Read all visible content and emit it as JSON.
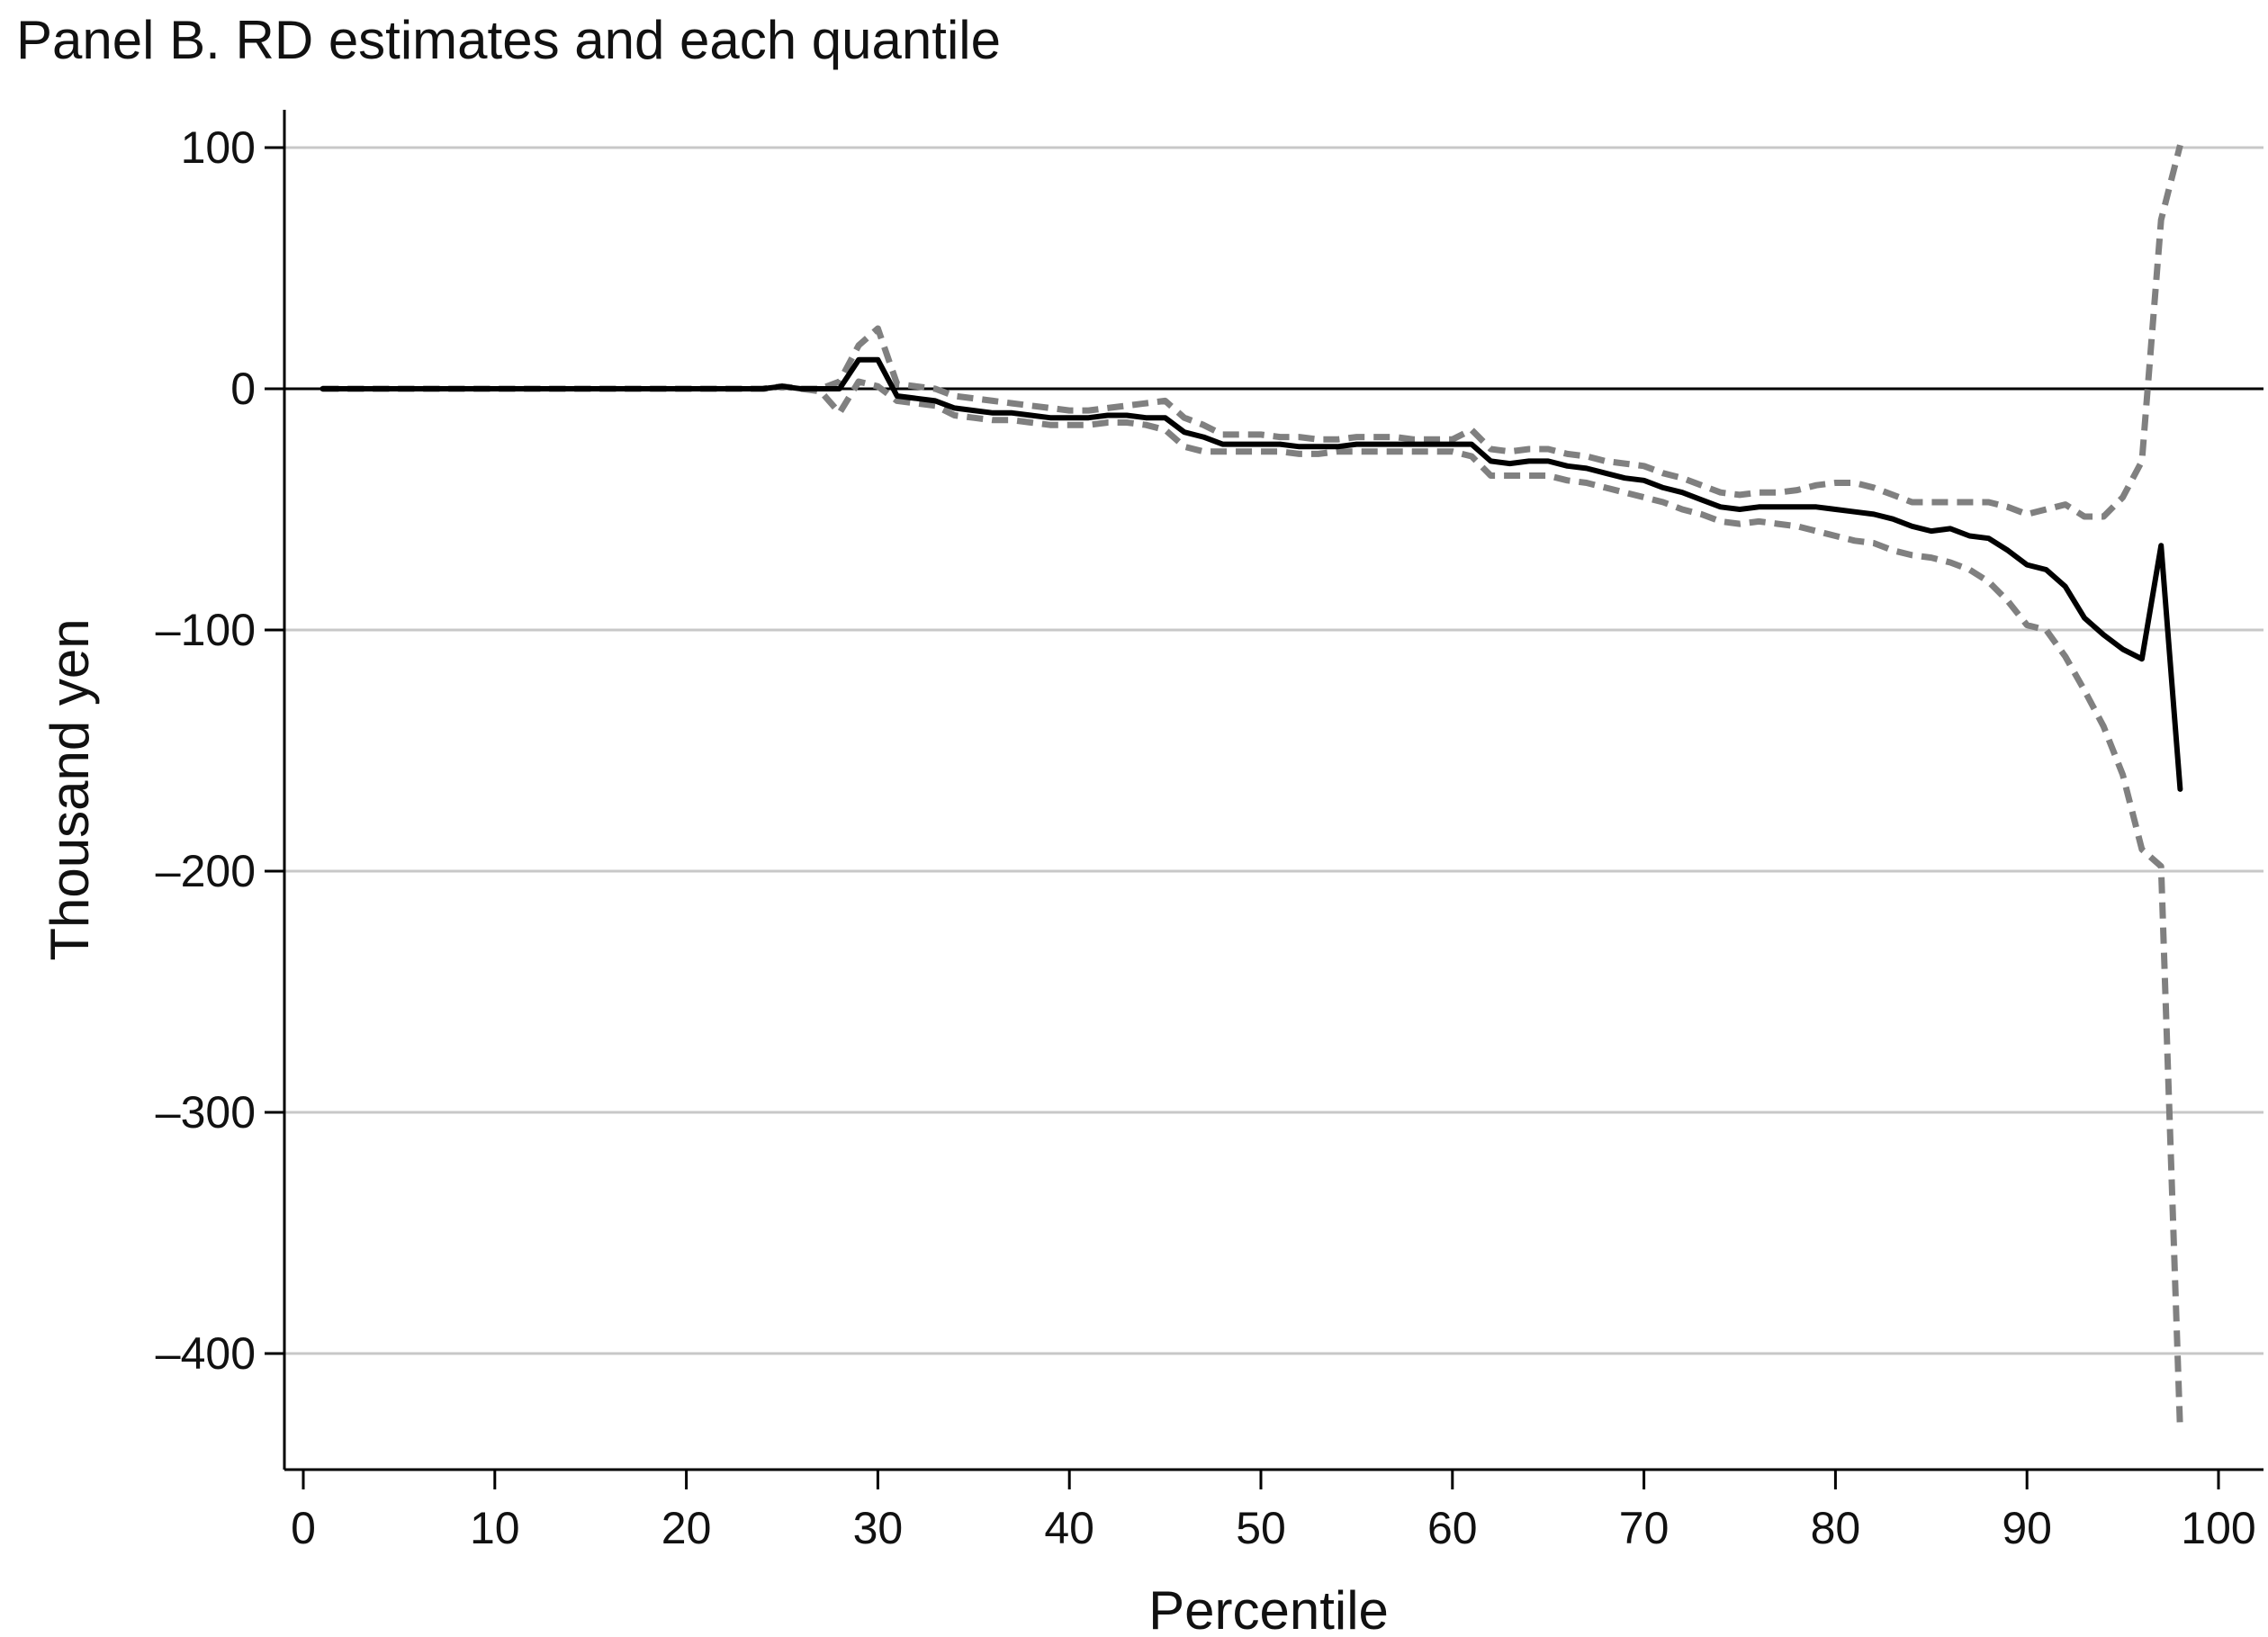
{
  "chart_data": {
    "type": "line",
    "title": "Panel B. RD estimates and each quantile",
    "xlabel": "Percentile",
    "ylabel": "Thousand yen",
    "xlim": [
      0,
      100
    ],
    "ylim": [
      -450,
      110
    ],
    "x_ticks": [
      {
        "value": 0,
        "label": "0"
      },
      {
        "value": 10,
        "label": "10"
      },
      {
        "value": 20,
        "label": "20"
      },
      {
        "value": 30,
        "label": "30"
      },
      {
        "value": 40,
        "label": "40"
      },
      {
        "value": 50,
        "label": "50"
      },
      {
        "value": 60,
        "label": "60"
      },
      {
        "value": 70,
        "label": "70"
      },
      {
        "value": 80,
        "label": "80"
      },
      {
        "value": 90,
        "label": "90"
      },
      {
        "value": 100,
        "label": "100"
      }
    ],
    "y_ticks": [
      {
        "value": 100,
        "label": "100"
      },
      {
        "value": 0,
        "label": "0"
      },
      {
        "value": -100,
        "label": "–100"
      },
      {
        "value": -200,
        "label": "–200"
      },
      {
        "value": -300,
        "label": "–300"
      },
      {
        "value": -400,
        "label": "–400"
      }
    ],
    "grid": "horizontal",
    "reference_line_y": 0,
    "colors": {
      "estimate": "#000000",
      "bands": "#808080",
      "grid": "#c8c8c8",
      "axis": "#000000"
    },
    "series": [
      {
        "role": "estimate",
        "style": "solid",
        "x": [
          1,
          5,
          10,
          15,
          20,
          24,
          25,
          26,
          27,
          28,
          29,
          30,
          31,
          32,
          33,
          34,
          35,
          36,
          37,
          38,
          39,
          40,
          41,
          42,
          43,
          44,
          45,
          46,
          47,
          48,
          49,
          50,
          51,
          52,
          53,
          54,
          55,
          56,
          57,
          58,
          59,
          60,
          61,
          62,
          63,
          64,
          65,
          66,
          67,
          68,
          69,
          70,
          71,
          72,
          73,
          74,
          75,
          76,
          77,
          78,
          79,
          80,
          81,
          82,
          83,
          84,
          85,
          86,
          87,
          88,
          89,
          90,
          91,
          92,
          93,
          94,
          95,
          96,
          97,
          98
        ],
        "y": [
          0,
          0,
          0,
          0,
          0,
          0,
          1,
          0,
          0,
          0,
          12,
          12,
          -3,
          -4,
          -5,
          -8,
          -9,
          -10,
          -10,
          -11,
          -12,
          -12,
          -12,
          -11,
          -11,
          -12,
          -12,
          -18,
          -20,
          -23,
          -23,
          -23,
          -23,
          -24,
          -24,
          -24,
          -23,
          -23,
          -23,
          -23,
          -23,
          -23,
          -23,
          -30,
          -31,
          -30,
          -30,
          -32,
          -33,
          -35,
          -37,
          -38,
          -41,
          -43,
          -46,
          -49,
          -50,
          -49,
          -49,
          -49,
          -49,
          -50,
          -51,
          -52,
          -54,
          -57,
          -59,
          -58,
          -61,
          -62,
          -67,
          -73,
          -75,
          -82,
          -95,
          -102,
          -108,
          -112,
          -65,
          -166
        ]
      },
      {
        "role": "upper",
        "style": "dashed",
        "x": [
          1,
          5,
          10,
          15,
          20,
          24,
          25,
          26,
          27,
          28,
          29,
          30,
          31,
          32,
          33,
          34,
          35,
          36,
          37,
          38,
          39,
          40,
          41,
          42,
          43,
          44,
          45,
          46,
          47,
          48,
          49,
          50,
          51,
          52,
          53,
          54,
          55,
          56,
          57,
          58,
          59,
          60,
          61,
          62,
          63,
          64,
          65,
          66,
          67,
          68,
          69,
          70,
          71,
          72,
          73,
          74,
          75,
          76,
          77,
          78,
          79,
          80,
          81,
          82,
          83,
          84,
          85,
          86,
          87,
          88,
          89,
          90,
          91,
          92,
          93,
          94,
          95,
          96,
          97,
          98
        ],
        "y": [
          0,
          0,
          0,
          0,
          0,
          0,
          1,
          0,
          0,
          3,
          18,
          25,
          2,
          1,
          0,
          -3,
          -4,
          -5,
          -6,
          -7,
          -8,
          -9,
          -9,
          -8,
          -7,
          -6,
          -5,
          -12,
          -15,
          -19,
          -19,
          -19,
          -20,
          -20,
          -21,
          -21,
          -20,
          -20,
          -20,
          -21,
          -21,
          -21,
          -17,
          -25,
          -26,
          -25,
          -25,
          -27,
          -28,
          -30,
          -31,
          -32,
          -35,
          -37,
          -40,
          -43,
          -44,
          -43,
          -43,
          -42,
          -40,
          -39,
          -39,
          -41,
          -44,
          -47,
          -47,
          -47,
          -47,
          -47,
          -49,
          -52,
          -50,
          -48,
          -53,
          -53,
          -45,
          -30,
          70,
          101
        ]
      },
      {
        "role": "lower",
        "style": "dashed",
        "x": [
          1,
          5,
          10,
          15,
          20,
          24,
          25,
          26,
          27,
          28,
          29,
          30,
          31,
          32,
          33,
          34,
          35,
          36,
          37,
          38,
          39,
          40,
          41,
          42,
          43,
          44,
          45,
          46,
          47,
          48,
          49,
          50,
          51,
          52,
          53,
          54,
          55,
          56,
          57,
          58,
          59,
          60,
          61,
          62,
          63,
          64,
          65,
          66,
          67,
          68,
          69,
          70,
          71,
          72,
          73,
          74,
          75,
          76,
          77,
          78,
          79,
          80,
          81,
          82,
          83,
          84,
          85,
          86,
          87,
          88,
          89,
          90,
          91,
          92,
          93,
          94,
          95,
          96,
          97,
          98
        ],
        "y": [
          0,
          0,
          0,
          0,
          0,
          0,
          1,
          0,
          -1,
          -10,
          3,
          1,
          -5,
          -6,
          -7,
          -11,
          -12,
          -13,
          -13,
          -14,
          -15,
          -15,
          -15,
          -14,
          -14,
          -15,
          -17,
          -24,
          -26,
          -26,
          -26,
          -26,
          -26,
          -27,
          -27,
          -26,
          -26,
          -26,
          -26,
          -26,
          -26,
          -26,
          -28,
          -36,
          -36,
          -36,
          -36,
          -38,
          -39,
          -41,
          -43,
          -45,
          -47,
          -50,
          -52,
          -55,
          -56,
          -55,
          -56,
          -57,
          -59,
          -61,
          -63,
          -64,
          -67,
          -69,
          -70,
          -72,
          -75,
          -80,
          -88,
          -98,
          -100,
          -111,
          -125,
          -140,
          -160,
          -191,
          -198,
          -432
        ]
      }
    ]
  }
}
